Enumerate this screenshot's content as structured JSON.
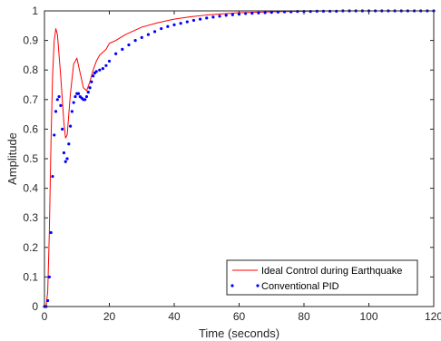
{
  "chart_data": {
    "type": "line",
    "xlabel": "Time (seconds)",
    "ylabel": "Amplitude",
    "xlim": [
      0,
      120
    ],
    "ylim": [
      0,
      1
    ],
    "xticks": [
      0,
      20,
      40,
      60,
      80,
      100,
      120
    ],
    "yticks": [
      0,
      0.1,
      0.2,
      0.3,
      0.4,
      0.5,
      0.6,
      0.7,
      0.8,
      0.9,
      1
    ],
    "grid": false,
    "legend_position": "bottom-right",
    "reference_line": {
      "y": 1,
      "style": "dotted",
      "color": "#000000"
    },
    "series": [
      {
        "name": "Ideal Control during Earthquake",
        "style": "line",
        "color": "#ff0000",
        "points": [
          [
            0,
            0
          ],
          [
            0.5,
            0
          ],
          [
            1,
            0.05
          ],
          [
            1.5,
            0.25
          ],
          [
            2,
            0.55
          ],
          [
            2.5,
            0.78
          ],
          [
            3,
            0.9
          ],
          [
            3.5,
            0.94
          ],
          [
            4,
            0.92
          ],
          [
            5,
            0.78
          ],
          [
            6,
            0.62
          ],
          [
            6.5,
            0.57
          ],
          [
            7,
            0.58
          ],
          [
            8,
            0.72
          ],
          [
            9,
            0.82
          ],
          [
            10,
            0.84
          ],
          [
            11,
            0.79
          ],
          [
            12,
            0.74
          ],
          [
            13,
            0.73
          ],
          [
            14,
            0.76
          ],
          [
            15,
            0.8
          ],
          [
            16,
            0.83
          ],
          [
            17,
            0.85
          ],
          [
            18,
            0.86
          ],
          [
            19,
            0.87
          ],
          [
            20,
            0.89
          ],
          [
            22,
            0.9
          ],
          [
            25,
            0.92
          ],
          [
            30,
            0.945
          ],
          [
            35,
            0.96
          ],
          [
            40,
            0.972
          ],
          [
            45,
            0.98
          ],
          [
            50,
            0.986
          ],
          [
            55,
            0.99
          ],
          [
            60,
            0.994
          ],
          [
            70,
            0.997
          ],
          [
            80,
            0.999
          ],
          [
            90,
            1
          ],
          [
            100,
            1
          ],
          [
            110,
            1
          ],
          [
            120,
            1
          ]
        ]
      },
      {
        "name": "Conventional PID",
        "style": "dots",
        "color": "#0000ff",
        "points": [
          [
            0,
            0
          ],
          [
            0.5,
            0
          ],
          [
            1,
            0.02
          ],
          [
            1.5,
            0.1
          ],
          [
            2,
            0.25
          ],
          [
            2.5,
            0.44
          ],
          [
            3,
            0.58
          ],
          [
            3.5,
            0.66
          ],
          [
            4,
            0.7
          ],
          [
            4.5,
            0.71
          ],
          [
            5,
            0.68
          ],
          [
            5.5,
            0.6
          ],
          [
            6,
            0.52
          ],
          [
            6.5,
            0.49
          ],
          [
            7,
            0.5
          ],
          [
            7.5,
            0.55
          ],
          [
            8,
            0.61
          ],
          [
            8.5,
            0.66
          ],
          [
            9,
            0.69
          ],
          [
            9.5,
            0.71
          ],
          [
            10,
            0.72
          ],
          [
            10.5,
            0.72
          ],
          [
            11,
            0.71
          ],
          [
            11.5,
            0.705
          ],
          [
            12,
            0.7
          ],
          [
            12.5,
            0.7
          ],
          [
            13,
            0.71
          ],
          [
            13.5,
            0.725
          ],
          [
            14,
            0.74
          ],
          [
            14.5,
            0.76
          ],
          [
            15,
            0.78
          ],
          [
            15.5,
            0.79
          ],
          [
            16,
            0.795
          ],
          [
            17,
            0.8
          ],
          [
            18,
            0.805
          ],
          [
            19,
            0.815
          ],
          [
            20,
            0.83
          ],
          [
            22,
            0.855
          ],
          [
            24,
            0.87
          ],
          [
            26,
            0.885
          ],
          [
            28,
            0.9
          ],
          [
            30,
            0.91
          ],
          [
            32,
            0.92
          ],
          [
            34,
            0.93
          ],
          [
            36,
            0.94
          ],
          [
            38,
            0.947
          ],
          [
            40,
            0.953
          ],
          [
            42,
            0.958
          ],
          [
            44,
            0.963
          ],
          [
            46,
            0.968
          ],
          [
            48,
            0.972
          ],
          [
            50,
            0.976
          ],
          [
            52,
            0.979
          ],
          [
            54,
            0.982
          ],
          [
            56,
            0.985
          ],
          [
            58,
            0.987
          ],
          [
            60,
            0.989
          ],
          [
            62,
            0.991
          ],
          [
            64,
            0.992
          ],
          [
            66,
            0.993
          ],
          [
            68,
            0.994
          ],
          [
            70,
            0.995
          ],
          [
            72,
            0.996
          ],
          [
            74,
            0.997
          ],
          [
            76,
            0.997
          ],
          [
            78,
            0.998
          ],
          [
            80,
            0.998
          ],
          [
            82,
            0.998
          ],
          [
            84,
            0.999
          ],
          [
            86,
            0.999
          ],
          [
            88,
            0.999
          ],
          [
            90,
            0.999
          ],
          [
            92,
            1
          ],
          [
            94,
            1
          ],
          [
            96,
            1
          ],
          [
            98,
            1
          ],
          [
            100,
            1
          ],
          [
            102,
            1
          ],
          [
            104,
            1
          ],
          [
            106,
            1
          ],
          [
            108,
            1
          ],
          [
            110,
            1
          ],
          [
            112,
            1
          ],
          [
            114,
            1
          ],
          [
            116,
            1
          ],
          [
            118,
            1
          ],
          [
            120,
            1
          ]
        ]
      }
    ]
  }
}
